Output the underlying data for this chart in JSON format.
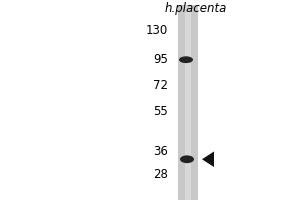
{
  "fig_bg": "#ffffff",
  "plot_bg": "#ffffff",
  "label_top": "h.placenta",
  "label_fontsize": 8.5,
  "mw_markers": [
    130,
    95,
    72,
    55,
    36,
    28
  ],
  "mw_label_fontsize": 8.5,
  "band1_mw": 95,
  "band1_color": "#222222",
  "band2_mw": 33,
  "band2_color": "#222222",
  "arrow_color": "#111111",
  "lane_color": "#c8c8c8",
  "lane_edge_color": "#aaaaaa"
}
